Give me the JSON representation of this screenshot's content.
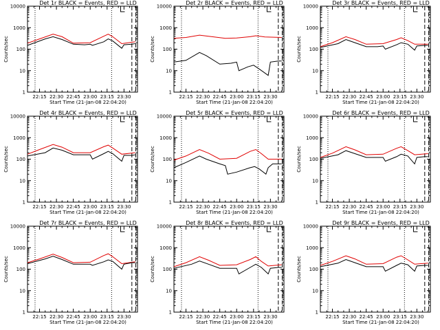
{
  "chart_data": {
    "type": "line",
    "layout": "3x3 grid",
    "y_scale": "log",
    "ylim": [
      1,
      10000
    ],
    "y_tick_labels": [
      "1",
      "10",
      "100",
      "1000",
      "10000"
    ],
    "x_tick_labels": [
      "22:15",
      "22:30",
      "22:45",
      "23:00",
      "23:15",
      "23:30"
    ],
    "xlabel": "Start Time (21-Jan-08 22:04:20)",
    "ylabel": "Counts/sec",
    "x_tick_minutes": [
      15,
      30,
      45,
      60,
      75,
      90
    ],
    "x_range_minutes": [
      4.3,
      102
    ],
    "dotted_verticals_minutes": [
      11,
      79
    ],
    "dashed_verticals_minutes": [
      97,
      100.5
    ],
    "colors": {
      "events": "#000000",
      "lld": "#e00000",
      "axes": "#000000"
    },
    "panels": [
      {
        "title": "Det 1r BLACK = Events, RED = LLD",
        "events": [
          [
            4.3,
            150
          ],
          [
            20,
            300
          ],
          [
            27,
            380
          ],
          [
            35,
            280
          ],
          [
            45,
            170
          ],
          [
            55,
            160
          ],
          [
            60,
            170
          ],
          [
            62,
            150
          ],
          [
            72,
            220
          ],
          [
            76,
            300
          ],
          [
            80,
            240
          ],
          [
            88,
            110
          ],
          [
            90,
            160
          ],
          [
            97,
            170
          ],
          [
            100,
            180
          ]
        ],
        "lld": [
          [
            4.3,
            190
          ],
          [
            15,
            300
          ],
          [
            27,
            500
          ],
          [
            35,
            380
          ],
          [
            45,
            190
          ],
          [
            60,
            200
          ],
          [
            72,
            400
          ],
          [
            76,
            500
          ],
          [
            80,
            380
          ],
          [
            88,
            180
          ],
          [
            100,
            220
          ]
        ]
      },
      {
        "title": "Det 2r BLACK = Events, RED = LLD",
        "events": [
          [
            4.3,
            25
          ],
          [
            15,
            30
          ],
          [
            27,
            70
          ],
          [
            33,
            50
          ],
          [
            45,
            20
          ],
          [
            55,
            22
          ],
          [
            60,
            25
          ],
          [
            62,
            10
          ],
          [
            70,
            15
          ],
          [
            75,
            18
          ],
          [
            80,
            12
          ],
          [
            88,
            6
          ],
          [
            90,
            25
          ],
          [
            97,
            28
          ],
          [
            100,
            28
          ]
        ],
        "lld": [
          [
            4.3,
            320
          ],
          [
            15,
            350
          ],
          [
            27,
            450
          ],
          [
            35,
            400
          ],
          [
            50,
            320
          ],
          [
            60,
            330
          ],
          [
            72,
            380
          ],
          [
            77,
            420
          ],
          [
            85,
            370
          ],
          [
            100,
            350
          ]
        ]
      },
      {
        "title": "Det 3r BLACK = Events, RED = LLD",
        "events": [
          [
            4.3,
            120
          ],
          [
            20,
            180
          ],
          [
            27,
            280
          ],
          [
            35,
            200
          ],
          [
            45,
            130
          ],
          [
            55,
            130
          ],
          [
            60,
            140
          ],
          [
            62,
            100
          ],
          [
            72,
            160
          ],
          [
            76,
            200
          ],
          [
            82,
            170
          ],
          [
            88,
            90
          ],
          [
            90,
            140
          ],
          [
            97,
            150
          ],
          [
            100,
            150
          ]
        ],
        "lld": [
          [
            4.3,
            130
          ],
          [
            15,
            200
          ],
          [
            27,
            380
          ],
          [
            35,
            280
          ],
          [
            45,
            170
          ],
          [
            60,
            180
          ],
          [
            72,
            280
          ],
          [
            76,
            340
          ],
          [
            82,
            250
          ],
          [
            88,
            170
          ],
          [
            100,
            170
          ]
        ]
      },
      {
        "title": "Det 4r BLACK = Events, RED = LLD",
        "events": [
          [
            4.3,
            140
          ],
          [
            20,
            200
          ],
          [
            27,
            330
          ],
          [
            35,
            260
          ],
          [
            45,
            160
          ],
          [
            55,
            160
          ],
          [
            60,
            160
          ],
          [
            62,
            100
          ],
          [
            72,
            180
          ],
          [
            76,
            230
          ],
          [
            80,
            180
          ],
          [
            88,
            80
          ],
          [
            90,
            150
          ],
          [
            97,
            150
          ],
          [
            100,
            160
          ]
        ],
        "lld": [
          [
            4.3,
            170
          ],
          [
            15,
            280
          ],
          [
            27,
            480
          ],
          [
            35,
            360
          ],
          [
            45,
            200
          ],
          [
            60,
            200
          ],
          [
            72,
            380
          ],
          [
            76,
            450
          ],
          [
            80,
            330
          ],
          [
            88,
            170
          ],
          [
            100,
            200
          ]
        ]
      },
      {
        "title": "Det 5r BLACK = Events, RED = LLD",
        "events": [
          [
            4.3,
            40
          ],
          [
            15,
            70
          ],
          [
            27,
            140
          ],
          [
            33,
            100
          ],
          [
            45,
            60
          ],
          [
            50,
            50
          ],
          [
            52,
            20
          ],
          [
            60,
            25
          ],
          [
            72,
            40
          ],
          [
            76,
            45
          ],
          [
            80,
            35
          ],
          [
            86,
            20
          ],
          [
            88,
            40
          ],
          [
            92,
            60
          ],
          [
            97,
            60
          ],
          [
            100,
            60
          ]
        ],
        "lld": [
          [
            4.3,
            90
          ],
          [
            15,
            140
          ],
          [
            27,
            280
          ],
          [
            35,
            190
          ],
          [
            45,
            100
          ],
          [
            60,
            110
          ],
          [
            72,
            230
          ],
          [
            77,
            280
          ],
          [
            82,
            180
          ],
          [
            88,
            100
          ],
          [
            100,
            100
          ]
        ]
      },
      {
        "title": "Det 6r BLACK = Events, RED = LLD",
        "events": [
          [
            4.3,
            110
          ],
          [
            20,
            160
          ],
          [
            27,
            250
          ],
          [
            35,
            180
          ],
          [
            45,
            120
          ],
          [
            55,
            120
          ],
          [
            60,
            120
          ],
          [
            62,
            80
          ],
          [
            72,
            130
          ],
          [
            76,
            170
          ],
          [
            82,
            140
          ],
          [
            88,
            60
          ],
          [
            90,
            120
          ],
          [
            97,
            130
          ],
          [
            100,
            130
          ]
        ],
        "lld": [
          [
            4.3,
            120
          ],
          [
            15,
            190
          ],
          [
            27,
            380
          ],
          [
            35,
            270
          ],
          [
            45,
            160
          ],
          [
            60,
            170
          ],
          [
            72,
            320
          ],
          [
            76,
            380
          ],
          [
            82,
            250
          ],
          [
            88,
            160
          ],
          [
            100,
            180
          ]
        ]
      },
      {
        "title": "Det 7r BLACK = Events, RED = LLD",
        "events": [
          [
            4.3,
            180
          ],
          [
            20,
            300
          ],
          [
            27,
            400
          ],
          [
            35,
            280
          ],
          [
            45,
            170
          ],
          [
            55,
            170
          ],
          [
            60,
            170
          ],
          [
            62,
            150
          ],
          [
            72,
            220
          ],
          [
            76,
            270
          ],
          [
            80,
            230
          ],
          [
            88,
            100
          ],
          [
            90,
            170
          ],
          [
            97,
            200
          ],
          [
            100,
            200
          ]
        ],
        "lld": [
          [
            4.3,
            200
          ],
          [
            15,
            300
          ],
          [
            27,
            500
          ],
          [
            35,
            350
          ],
          [
            45,
            200
          ],
          [
            60,
            210
          ],
          [
            72,
            430
          ],
          [
            76,
            520
          ],
          [
            80,
            380
          ],
          [
            88,
            180
          ],
          [
            100,
            220
          ]
        ]
      },
      {
        "title": "Det 8r BLACK = Events, RED = LLD",
        "events": [
          [
            4.3,
            110
          ],
          [
            20,
            170
          ],
          [
            27,
            240
          ],
          [
            35,
            170
          ],
          [
            45,
            110
          ],
          [
            55,
            110
          ],
          [
            60,
            110
          ],
          [
            62,
            60
          ],
          [
            72,
            120
          ],
          [
            77,
            170
          ],
          [
            82,
            120
          ],
          [
            88,
            60
          ],
          [
            90,
            110
          ],
          [
            97,
            120
          ],
          [
            100,
            120
          ]
        ],
        "lld": [
          [
            4.3,
            130
          ],
          [
            15,
            200
          ],
          [
            27,
            380
          ],
          [
            35,
            260
          ],
          [
            45,
            150
          ],
          [
            60,
            160
          ],
          [
            72,
            280
          ],
          [
            77,
            380
          ],
          [
            82,
            230
          ],
          [
            88,
            140
          ],
          [
            100,
            160
          ]
        ]
      },
      {
        "title": "Det 9r BLACK = Events, RED = LLD",
        "events": [
          [
            4.3,
            130
          ],
          [
            20,
            190
          ],
          [
            27,
            280
          ],
          [
            35,
            200
          ],
          [
            45,
            130
          ],
          [
            55,
            130
          ],
          [
            60,
            130
          ],
          [
            62,
            80
          ],
          [
            72,
            150
          ],
          [
            76,
            190
          ],
          [
            82,
            160
          ],
          [
            88,
            80
          ],
          [
            90,
            140
          ],
          [
            97,
            150
          ],
          [
            100,
            150
          ]
        ],
        "lld": [
          [
            4.3,
            150
          ],
          [
            15,
            230
          ],
          [
            27,
            420
          ],
          [
            35,
            300
          ],
          [
            45,
            170
          ],
          [
            60,
            180
          ],
          [
            72,
            360
          ],
          [
            76,
            420
          ],
          [
            82,
            270
          ],
          [
            88,
            170
          ],
          [
            100,
            190
          ]
        ]
      }
    ]
  }
}
